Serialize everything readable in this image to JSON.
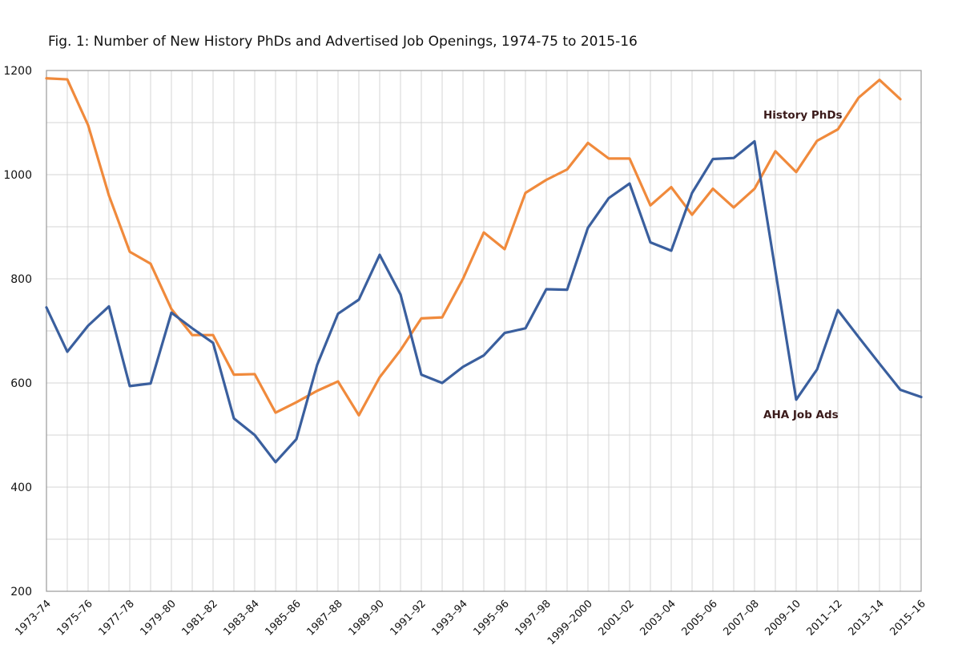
{
  "chart_data": {
    "type": "line",
    "title": "Fig. 1: Number of New History PhDs and Advertised Job Openings, 1974-75 to 2015-16",
    "xlabel": "",
    "ylabel": "",
    "ylim": [
      200,
      1200
    ],
    "yticks": [
      200,
      400,
      600,
      800,
      1000,
      1200
    ],
    "grid": true,
    "x": [
      "1973-74",
      "1974-75",
      "1975-76",
      "1976-77",
      "1977-78",
      "1978-79",
      "1979-80",
      "1980-81",
      "1981-82",
      "1982-83",
      "1983-84",
      "1984-85",
      "1985-86",
      "1986-87",
      "1987-88",
      "1988-89",
      "1989-90",
      "1990-91",
      "1991-92",
      "1992-93",
      "1993-94",
      "1994-95",
      "1995-96",
      "1996-97",
      "1997-98",
      "1998-99",
      "1999-2000",
      "2000-01",
      "2001-02",
      "2002-03",
      "2003-04",
      "2004-05",
      "2005-06",
      "2006-07",
      "2007-08",
      "2008-09",
      "2009-10",
      "2010-11",
      "2011-12",
      "2012-13",
      "2013-14",
      "2014-15",
      "2015-16"
    ],
    "xtick_labels": [
      "1973–74",
      "1975–76",
      "1977–78",
      "1979–80",
      "1981–82",
      "1983–84",
      "1985–86",
      "1987–88",
      "1989–90",
      "1991–92",
      "1993–94",
      "1995–96",
      "1997–98",
      "1999–2000",
      "2001–02",
      "2003–04",
      "2005–06",
      "2007–08",
      "2009–10",
      "2011–12",
      "2013–14",
      "2015–16"
    ],
    "series": [
      {
        "name": "History PhDs",
        "color": "#f08a3c",
        "values": [
          1185,
          1183,
          1095,
          960,
          852,
          829,
          742,
          692,
          692,
          616,
          617,
          543,
          563,
          585,
          603,
          538,
          611,
          663,
          724,
          726,
          800,
          889,
          857,
          965,
          990,
          1010,
          1061,
          1031,
          1031,
          941,
          976,
          923,
          973,
          937,
          973,
          1045,
          1005,
          1065,
          1087,
          1148,
          1182,
          1145,
          null
        ]
      },
      {
        "name": "AHA Job Ads",
        "color": "#3a5f9e",
        "values": [
          745,
          660,
          710,
          747,
          594,
          599,
          735,
          705,
          677,
          532,
          500,
          448,
          492,
          635,
          733,
          760,
          846,
          770,
          616,
          600,
          631,
          653,
          696,
          705,
          780,
          779,
          898,
          955,
          983,
          870,
          854,
          965,
          1030,
          1032,
          1064,
          816,
          568,
          626,
          740,
          688,
          637,
          587,
          573
        ]
      }
    ],
    "annotations": [
      "History PhDs",
      "AHA Job Ads"
    ]
  }
}
